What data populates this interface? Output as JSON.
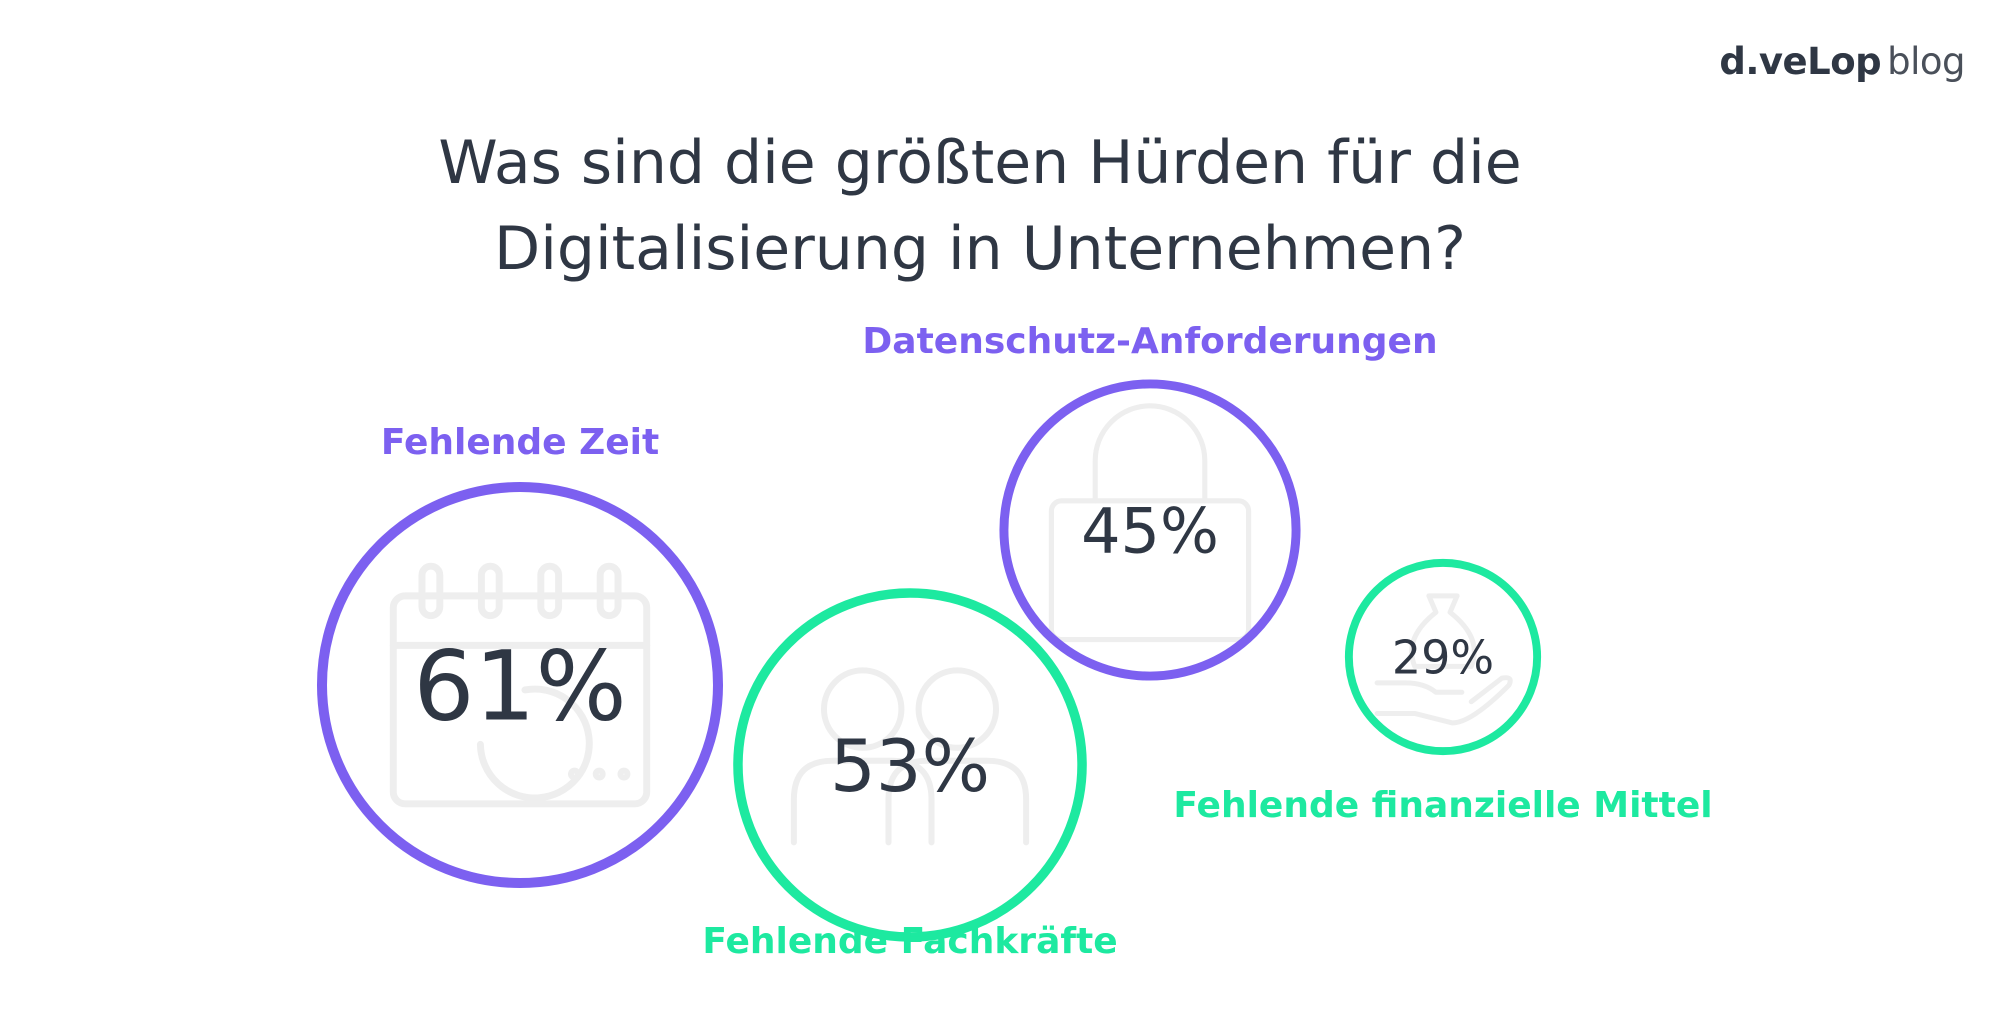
{
  "brand": {
    "logo": "d.veLop",
    "suffix": "blog"
  },
  "title": "Was sind die größten Hürden für die Digitalisierung in Unternehmen?",
  "colors": {
    "purple": "#7c60f0",
    "green": "#1de9a0",
    "text": "#2f3744",
    "icon": "#eeeeee"
  },
  "chart_data": {
    "type": "bubble",
    "title": "Was sind die größten Hürden für die Digitalisierung in Unternehmen?",
    "unit": "%",
    "series": [
      {
        "label": "Fehlende Zeit",
        "value": 61,
        "display": "61%",
        "color": "purple",
        "icon": "calendar-icon"
      },
      {
        "label": "Fehlende Fachkräfte",
        "value": 53,
        "display": "53%",
        "color": "green",
        "icon": "people-icon"
      },
      {
        "label": "Datenschutz-Anforderungen",
        "value": 45,
        "display": "45%",
        "color": "purple",
        "icon": "lock-icon"
      },
      {
        "label": "Fehlende finanzielle Mittel",
        "value": 29,
        "display": "29%",
        "color": "green",
        "icon": "money-bag-hand-icon"
      }
    ]
  }
}
